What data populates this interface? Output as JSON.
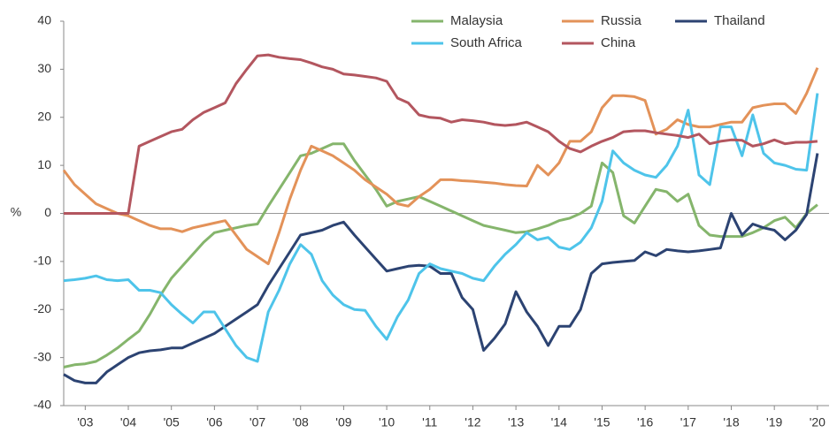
{
  "chart_data": {
    "type": "line",
    "ylabel": "%",
    "x": [
      2002.5,
      2002.75,
      2003,
      2003.25,
      2003.5,
      2003.75,
      2004,
      2004.25,
      2004.5,
      2004.75,
      2005,
      2005.25,
      2005.5,
      2005.75,
      2006,
      2006.25,
      2006.5,
      2006.75,
      2007,
      2007.25,
      2007.5,
      2007.75,
      2008,
      2008.25,
      2008.5,
      2008.75,
      2009,
      2009.25,
      2009.5,
      2009.75,
      2010,
      2010.25,
      2010.5,
      2010.75,
      2011,
      2011.25,
      2011.5,
      2011.75,
      2012,
      2012.25,
      2012.5,
      2012.75,
      2013,
      2013.25,
      2013.5,
      2013.75,
      2014,
      2014.25,
      2014.5,
      2014.75,
      2015,
      2015.25,
      2015.5,
      2015.75,
      2016,
      2016.25,
      2016.5,
      2016.75,
      2017,
      2017.25,
      2017.5,
      2017.75,
      2018,
      2018.25,
      2018.5,
      2018.75,
      2019,
      2019.25,
      2019.5,
      2019.75,
      2020
    ],
    "series": [
      {
        "name": "Malaysia",
        "color": "#85b56c",
        "values": [
          -32,
          -31.5,
          -31.3,
          -30.8,
          -29.5,
          -28,
          -26.2,
          -24.5,
          -21,
          -17,
          -13.5,
          -11,
          -8.5,
          -6,
          -4,
          -3.5,
          -3,
          -2.5,
          -2.2,
          1.5,
          5,
          8.5,
          12,
          12.5,
          13.5,
          14.5,
          14.5,
          11,
          8,
          5,
          1.5,
          2.5,
          3,
          3.5,
          2.5,
          1.5,
          0.5,
          -0.5,
          -1.5,
          -2.5,
          -3,
          -3.5,
          -4,
          -3.8,
          -3.2,
          -2.5,
          -1.5,
          -1,
          0,
          1.5,
          10.5,
          8.5,
          -0.5,
          -2,
          1.5,
          5,
          4.5,
          2.5,
          4,
          -2.5,
          -4.5,
          -4.8,
          -4.8,
          -4.8,
          -4,
          -3,
          -1.5,
          -0.8,
          -3,
          0,
          1.8
        ]
      },
      {
        "name": "Russia",
        "color": "#e39259",
        "values": [
          9,
          6,
          4,
          2,
          1,
          0,
          -0.5,
          -1.5,
          -2.5,
          -3.2,
          -3.2,
          -3.8,
          -3,
          -2.5,
          -2,
          -1.5,
          -4.5,
          -7.5,
          -9,
          -10.5,
          -4,
          3,
          9,
          14,
          13,
          12,
          10.5,
          9,
          7,
          5.5,
          4,
          2,
          1.5,
          3.5,
          5,
          7,
          7,
          6.8,
          6.7,
          6.5,
          6.3,
          6,
          5.8,
          5.7,
          10,
          8,
          10.5,
          15,
          15,
          17,
          22,
          24.5,
          24.5,
          24.3,
          23.5,
          16.5,
          17.5,
          19.5,
          18.5,
          18,
          18,
          18.5,
          19,
          19,
          22,
          22.5,
          22.8,
          22.8,
          20.8,
          25,
          30.3
        ]
      },
      {
        "name": "Thailand",
        "color": "#2c4372",
        "values": [
          -33.5,
          -34.8,
          -35.3,
          -35.3,
          -33,
          -31.5,
          -30,
          -29,
          -28.6,
          -28.4,
          -28,
          -28,
          -27,
          -26,
          -25,
          -23.5,
          -22,
          -20.5,
          -19,
          -15,
          -11.5,
          -8,
          -4.5,
          -4,
          -3.5,
          -2.5,
          -1.8,
          -4.5,
          -7,
          -9.5,
          -12,
          -11.5,
          -11,
          -10.8,
          -11,
          -12.5,
          -12.5,
          -17.5,
          -20,
          -28.5,
          -26,
          -23,
          -16.3,
          -20.5,
          -23.5,
          -27.5,
          -23.5,
          -23.5,
          -20,
          -12.5,
          -10.5,
          -10.2,
          -10,
          -9.8,
          -8,
          -8.8,
          -7.5,
          -7.8,
          -8,
          -7.8,
          -7.5,
          -7.2,
          0,
          -4.5,
          -2.2,
          -3,
          -3.5,
          -5.5,
          -3.5,
          -0.2,
          12.5
        ]
      },
      {
        "name": "South Africa",
        "color": "#4ec4ea",
        "values": [
          -14,
          -13.8,
          -13.5,
          -13,
          -13.8,
          -14,
          -13.8,
          -16,
          -16,
          -16.5,
          -19,
          -21,
          -22.8,
          -20.5,
          -20.5,
          -24,
          -27.5,
          -30,
          -30.8,
          -20.5,
          -16,
          -10.5,
          -6.5,
          -8.5,
          -14,
          -17,
          -19,
          -20,
          -20.2,
          -23.5,
          -26.2,
          -21.5,
          -18,
          -12.5,
          -10.5,
          -11.5,
          -12,
          -12.5,
          -13.5,
          -14,
          -11,
          -8.5,
          -6.5,
          -4,
          -5.5,
          -5,
          -7,
          -7.5,
          -6,
          -3,
          2.5,
          13,
          10.5,
          9,
          8,
          7.5,
          10,
          14,
          21.5,
          8,
          6,
          18,
          18,
          12,
          20.5,
          12.5,
          10.5,
          10,
          9.2,
          9,
          25
        ]
      },
      {
        "name": "China",
        "color": "#b3565f",
        "values": [
          0,
          0,
          0,
          0,
          0,
          0,
          0,
          14,
          15,
          16,
          17,
          17.5,
          19.5,
          21,
          22,
          23,
          27,
          30,
          32.8,
          33,
          32.5,
          32.2,
          32,
          31.3,
          30.5,
          30,
          29,
          28.8,
          28.5,
          28.2,
          27.5,
          24,
          23,
          20.5,
          20,
          19.8,
          19,
          19.5,
          19.3,
          19,
          18.5,
          18.3,
          18.5,
          19,
          18,
          17,
          15,
          13.5,
          12.8,
          14,
          15,
          15.8,
          17,
          17.2,
          17.2,
          16.8,
          16.5,
          16.2,
          15.8,
          16.5,
          14.5,
          15,
          15.3,
          15.2,
          14,
          14.5,
          15.3,
          14.5,
          14.8,
          14.8,
          15
        ]
      }
    ],
    "xlim": [
      2002.5,
      2020.27
    ],
    "xticks": [
      {
        "value": 2003,
        "label": "'03"
      },
      {
        "value": 2004,
        "label": "'04"
      },
      {
        "value": 2005,
        "label": "'05"
      },
      {
        "value": 2006,
        "label": "'06"
      },
      {
        "value": 2007,
        "label": "'07"
      },
      {
        "value": 2008,
        "label": "'08"
      },
      {
        "value": 2009,
        "label": "'09"
      },
      {
        "value": 2010,
        "label": "'10"
      },
      {
        "value": 2011,
        "label": "'11"
      },
      {
        "value": 2012,
        "label": "'12"
      },
      {
        "value": 2013,
        "label": "'13"
      },
      {
        "value": 2014,
        "label": "'14"
      },
      {
        "value": 2015,
        "label": "'15"
      },
      {
        "value": 2016,
        "label": "'16"
      },
      {
        "value": 2017,
        "label": "'17"
      },
      {
        "value": 2018,
        "label": "'18"
      },
      {
        "value": 2019,
        "label": "'19"
      },
      {
        "value": 2020,
        "label": "'20"
      }
    ],
    "ylim": [
      -40,
      40
    ],
    "yticks": [
      -40,
      -30,
      -20,
      -10,
      0,
      10,
      20,
      30,
      40
    ],
    "legend": "top"
  }
}
